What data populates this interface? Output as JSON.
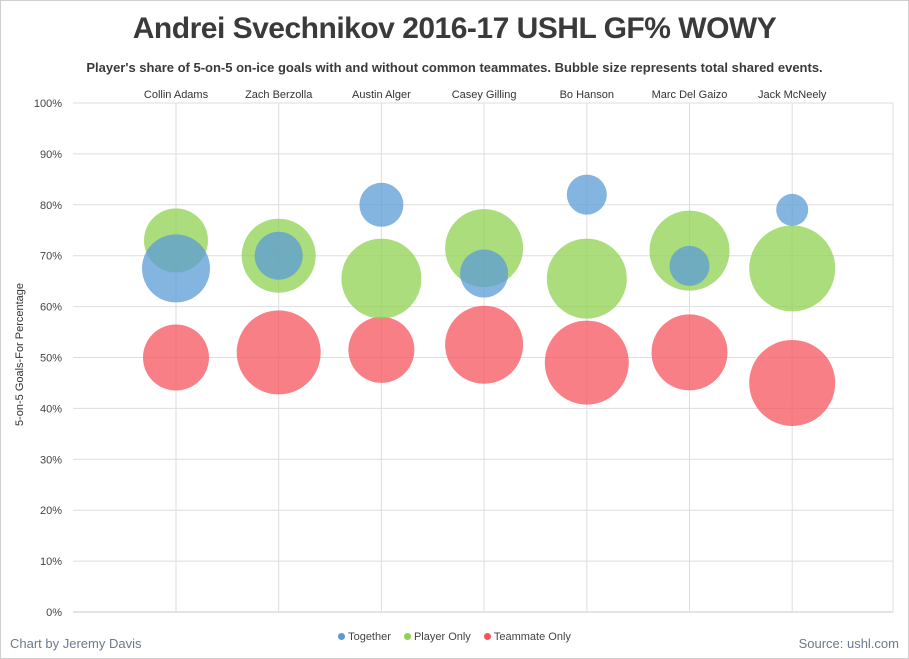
{
  "chart_data": {
    "type": "scatter",
    "title": "Andrei Svechnikov 2016-17 USHL GF% WOWY",
    "subtitle": "Player's share of 5-on-5 on-ice goals with and without common teammates. Bubble size represents total shared events.",
    "ylabel": "5-on-5 Goals-For Percentage",
    "ylim": [
      0,
      100
    ],
    "yticks": [
      "0%",
      "10%",
      "20%",
      "30%",
      "40%",
      "50%",
      "60%",
      "70%",
      "80%",
      "90%",
      "100%"
    ],
    "categories": [
      "Collin Adams",
      "Zach Berzolla",
      "Austin Alger",
      "Casey Gilling",
      "Bo Hanson",
      "Marc Del Gaizo",
      "Jack McNeely"
    ],
    "series": [
      {
        "name": "Together",
        "color": "#5b9bd5",
        "values": [
          67.5,
          70,
          80,
          66.5,
          82,
          68,
          79
        ],
        "sizes": [
          34,
          24,
          22,
          24,
          20,
          20,
          16
        ]
      },
      {
        "name": "Player Only",
        "color": "#8fd150",
        "values": [
          73,
          70,
          65.5,
          71.5,
          65.5,
          71,
          67.5
        ],
        "sizes": [
          32,
          37,
          40,
          39,
          40,
          40,
          43
        ]
      },
      {
        "name": "Teammate Only",
        "color": "#f6545c",
        "values": [
          50,
          51,
          51.5,
          52.5,
          49,
          51,
          45
        ],
        "sizes": [
          33,
          42,
          33,
          39,
          42,
          38,
          43
        ]
      }
    ],
    "grid": true,
    "legend": "bottom"
  },
  "footer": {
    "credit": "Chart by Jeremy Davis",
    "source": "Source: ushl.com"
  }
}
